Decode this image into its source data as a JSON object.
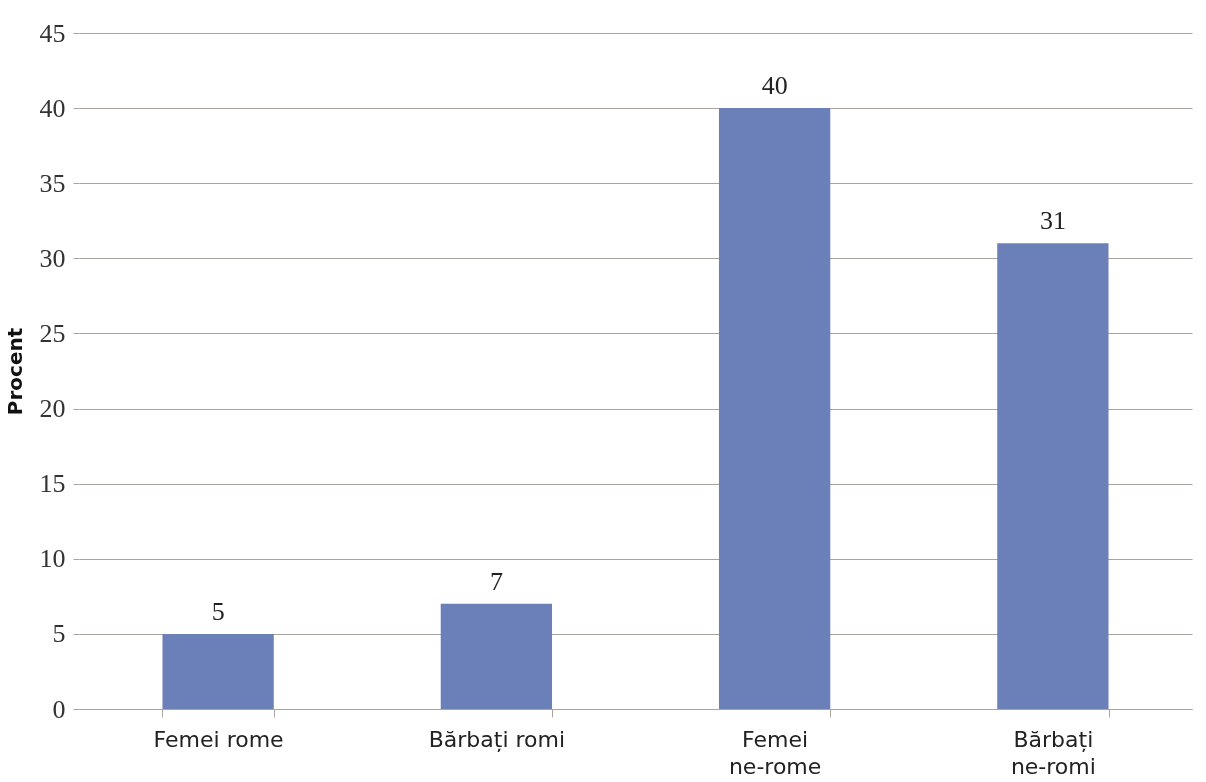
{
  "chart_data": {
    "type": "bar",
    "ylabel": "Procent",
    "categories": [
      "Femei rome",
      "Bărbați romi",
      "Femei\nne-rome",
      "Bărbați\nne-romi"
    ],
    "values": [
      5,
      7,
      40,
      31
    ],
    "color": "#6b80b8",
    "ylim": [
      0,
      45
    ],
    "yticks": [
      0,
      5,
      10,
      15,
      20,
      25,
      30,
      35,
      40,
      45
    ],
    "grid": "y",
    "data_labels": true
  }
}
